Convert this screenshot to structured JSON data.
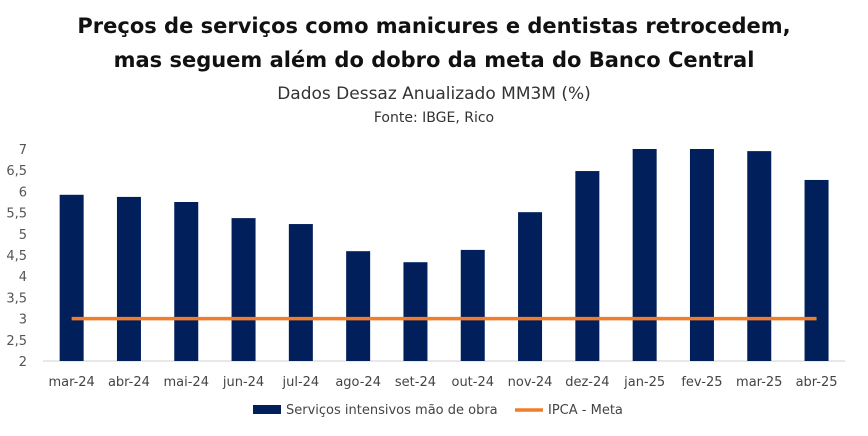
{
  "chart_data": {
    "type": "bar",
    "title": "Preços de serviços como manicures e dentistas retrocedem,",
    "title2": "mas seguem além do dobro da meta do Banco Central",
    "subtitle": "Dados Dessaz Anualizado MM3M (%)",
    "source": "Fonte: IBGE, Rico",
    "categories": [
      "mar-24",
      "abr-24",
      "mai-24",
      "jun-24",
      "jul-24",
      "ago-24",
      "set-24",
      "out-24",
      "nov-24",
      "dez-24",
      "jan-25",
      "fev-25",
      "mar-25",
      "abr-25"
    ],
    "series": [
      {
        "name": "Serviços intensivos mão de obra",
        "type": "bar",
        "color": "#001f5b",
        "values": [
          5.92,
          5.87,
          5.75,
          5.37,
          5.23,
          4.59,
          4.33,
          4.62,
          5.51,
          6.48,
          7.0,
          7.0,
          6.95,
          6.27
        ]
      },
      {
        "name": "IPCA - Meta",
        "type": "line",
        "color": "#f07d2a",
        "values": [
          3,
          3,
          3,
          3,
          3,
          3,
          3,
          3,
          3,
          3,
          3,
          3,
          3,
          3
        ]
      }
    ],
    "ylim": [
      2,
      7
    ],
    "yticks": [
      "2",
      "2,5",
      "3",
      "3,5",
      "4",
      "4,5",
      "5",
      "5,5",
      "6",
      "6,5",
      "7"
    ],
    "legend": "bottom"
  }
}
